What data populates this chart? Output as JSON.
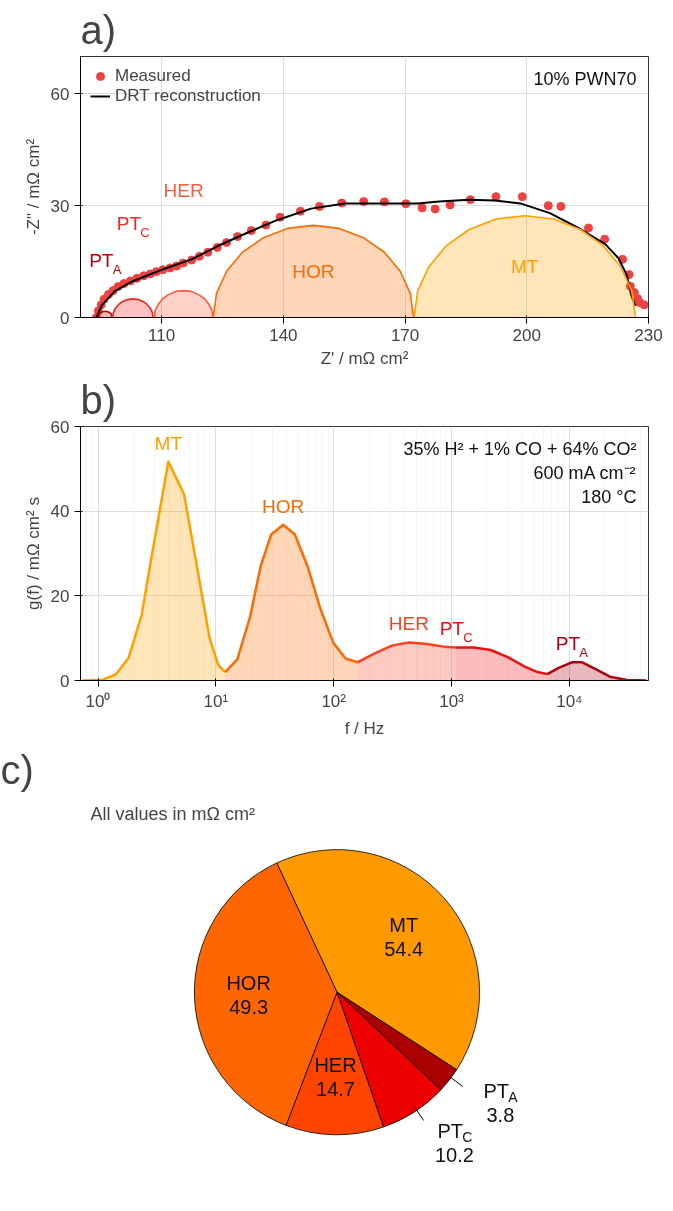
{
  "chart_data": [
    {
      "type": "scatter",
      "title": "a)",
      "xlabel": "Z' / mΩ cm²",
      "ylabel": "-Z\" / mΩ cm²",
      "xlim": [
        90,
        230
      ],
      "xticks": [
        110,
        140,
        170,
        200,
        230
      ],
      "ylim": [
        0,
        70
      ],
      "yticks": [
        0,
        30,
        60
      ],
      "grid": true,
      "legend": "top left",
      "annotations": [
        "10% PWN70"
      ],
      "series": [
        {
          "name": "Measured",
          "type": "scatter",
          "marker": "circle",
          "color": "#f04040",
          "x": [
            93.9,
            94.4,
            95.1,
            95.8,
            96.9,
            98.0,
            99.3,
            100.7,
            102.3,
            103.9,
            105.6,
            107.2,
            108.7,
            110.3,
            112.1,
            113.7,
            115.3,
            117.4,
            119.3,
            121.4,
            123.7,
            126.0,
            128.7,
            132.1,
            135.7,
            139.2,
            144.2,
            148.9,
            154.4,
            159.8,
            164.9,
            170.2,
            174.2,
            177.4,
            181.1,
            186.1,
            192.4,
            198.9,
            205.3,
            208.4,
            215.2,
            219.2,
            223.6,
            225.2,
            225.5,
            226.5,
            227.3,
            227.8,
            228.9
          ],
          "values": [
            0,
            1.8,
            3.4,
            4.9,
            6.2,
            7.2,
            8.3,
            9.1,
            9.8,
            10.5,
            11.2,
            11.7,
            12.3,
            12.8,
            13.3,
            13.8,
            14.6,
            15.4,
            16.4,
            17.5,
            18.8,
            20.1,
            21.7,
            23.3,
            24.8,
            26.9,
            28.5,
            29.8,
            30.7,
            31.1,
            31.0,
            30.5,
            29.4,
            29.1,
            30.2,
            31.6,
            32.4,
            32.4,
            30.0,
            29.8,
            24.0,
            21.0,
            15.6,
            11.5,
            8.4,
            6.7,
            5.1,
            4.0,
            3.4
          ]
        },
        {
          "name": "DRT reconstruction",
          "type": "line",
          "color": "#000000",
          "x": [
            93.9,
            95.3,
            98.4,
            102.6,
            110.0,
            117.4,
            123.7,
            130.0,
            138.4,
            146.8,
            155.2,
            165.8,
            173.1,
            178.4,
            185.7,
            192.1,
            198.4,
            205.7,
            213.1,
            219.4,
            222.6,
            224.7,
            225.7,
            226.8
          ],
          "values": [
            0,
            3.4,
            7.0,
            9.6,
            12.8,
            15.6,
            19.1,
            22.2,
            26.1,
            29.2,
            30.6,
            30.6,
            30.6,
            31.1,
            31.6,
            31.4,
            30.6,
            28.0,
            23.8,
            19.6,
            15.9,
            11.2,
            6.0,
            3.1
          ]
        },
        {
          "name": "PT$_{A}$",
          "type": "area",
          "color": "#c00000",
          "x": [
            94.4,
            94.6,
            95.3,
            96.1,
            96.9,
            97.6,
            97.8
          ],
          "values": [
            0,
            0.9,
            1.5,
            1.7,
            1.5,
            0.9,
            0
          ]
        },
        {
          "name": "PT$_{C}$",
          "type": "area",
          "color": "#ff2020",
          "x": [
            97.9,
            98.1,
            98.6,
            99.4,
            100.4,
            101.6,
            102.9,
            104.2,
            105.4,
            106.4,
            107.2,
            107.7,
            107.9
          ],
          "values": [
            0,
            1.3,
            2.5,
            3.5,
            4.3,
            4.8,
            5.0,
            4.8,
            4.3,
            3.5,
            2.5,
            1.3,
            0
          ]
        },
        {
          "name": "HER",
          "type": "area",
          "color": "#ff5a3c",
          "x": [
            108.2,
            108.4,
            109.2,
            110.3,
            111.8,
            113.5,
            115.4,
            117.3,
            119.0,
            120.5,
            121.6,
            122.4,
            122.6
          ],
          "values": [
            0,
            1.9,
            3.6,
            5.1,
            6.2,
            7.0,
            7.2,
            7.0,
            6.2,
            5.1,
            3.6,
            1.9,
            0
          ]
        },
        {
          "name": "HOR",
          "type": "area",
          "color": "#ff6a00",
          "x": [
            122.7,
            123.5,
            126.0,
            129.9,
            135.1,
            141.0,
            147.4,
            153.8,
            159.7,
            164.9,
            168.8,
            171.3,
            172.1
          ],
          "values": [
            0,
            6.4,
            12.4,
            17.5,
            21.4,
            23.9,
            24.7,
            23.9,
            21.4,
            17.5,
            12.4,
            6.4,
            0
          ]
        },
        {
          "name": "MT",
          "type": "area",
          "color": "#ffa000",
          "x": [
            172.2,
            173.1,
            175.9,
            180.2,
            185.8,
            192.4,
            199.5,
            206.6,
            213.2,
            218.8,
            223.1,
            225.9,
            226.8
          ],
          "values": [
            0,
            7.1,
            13.7,
            19.3,
            23.6,
            26.4,
            27.3,
            26.4,
            23.6,
            19.3,
            13.7,
            7.1,
            0
          ]
        }
      ]
    },
    {
      "type": "area",
      "title": "b)",
      "xlabel": "f / Hz",
      "ylabel": "g(f) / mΩ cm² s",
      "log": "x",
      "xlim": [
        0.71,
        47000
      ],
      "xticks": [
        {
          "value": 1,
          "label": "10⁰"
        },
        {
          "value": 10,
          "label": "10¹"
        },
        {
          "value": 100,
          "label": "10²"
        },
        {
          "value": 1000,
          "label": "10³"
        },
        {
          "value": 10000,
          "label": "10⁴"
        }
      ],
      "ylim": [
        0,
        60
      ],
      "yticks": [
        0,
        20,
        40,
        60
      ],
      "grid": true,
      "annotations": [
        "35% H² + 1% CO + 64% CO²",
        "600 mA cm⁻²",
        "180 °C"
      ],
      "series": [
        {
          "name": "MT",
          "color": "#ffa000",
          "x": [
            0.73,
            1.1,
            1.42,
            1.82,
            2.34,
            2.88,
            3.95,
            5.37,
            6.9,
            8.85,
            10.5,
            12.0
          ],
          "values": [
            0,
            0.2,
            1.5,
            5.4,
            15.4,
            30,
            51.7,
            44,
            27,
            10,
            3.6,
            2.0
          ]
        },
        {
          "name": "HOR",
          "color": "#ff6a00",
          "x": [
            12.0,
            15.2,
            19.5,
            24,
            29.5,
            37.3,
            46.8,
            60,
            77,
            98.9,
            126,
            159
          ],
          "values": [
            2.0,
            5,
            15,
            27,
            34.5,
            36.8,
            34.5,
            27,
            17,
            9,
            5.2,
            4.3
          ]
        },
        {
          "name": "HER",
          "color": "#ff4020",
          "x": [
            159,
            227,
            316,
            435,
            617,
            861,
            1086
          ],
          "values": [
            4.3,
            6.5,
            8.3,
            9.0,
            8.6,
            8.0,
            7.8
          ]
        },
        {
          "name": "PT$_{C}$",
          "color": "#ee1010",
          "x": [
            1086,
            1545,
            2150,
            3000,
            4170,
            5370,
            6500
          ],
          "values": [
            7.8,
            7.8,
            7.2,
            5.5,
            3.3,
            2.0,
            1.5
          ]
        },
        {
          "name": "PT$_{A}$",
          "color": "#b00010",
          "x": [
            6500,
            8130,
            10500,
            12870,
            17200,
            22100,
            30900,
            45000
          ],
          "values": [
            1.5,
            3.0,
            4.3,
            4.3,
            2.5,
            0.9,
            0.1,
            0
          ]
        }
      ]
    },
    {
      "type": "pie",
      "title": "c)",
      "subtitle": "All values in mΩ cm²",
      "categories": [
        "MT",
        "PT$_{A}$",
        "PT$_{C}$",
        "HER",
        "HOR"
      ],
      "values": [
        54.4,
        3.8,
        10.2,
        14.7,
        49.3
      ],
      "colors": [
        "#ff9900",
        "#aa0000",
        "#ee0000",
        "#ff4400",
        "#ff6600"
      ],
      "data_labels": true
    }
  ]
}
